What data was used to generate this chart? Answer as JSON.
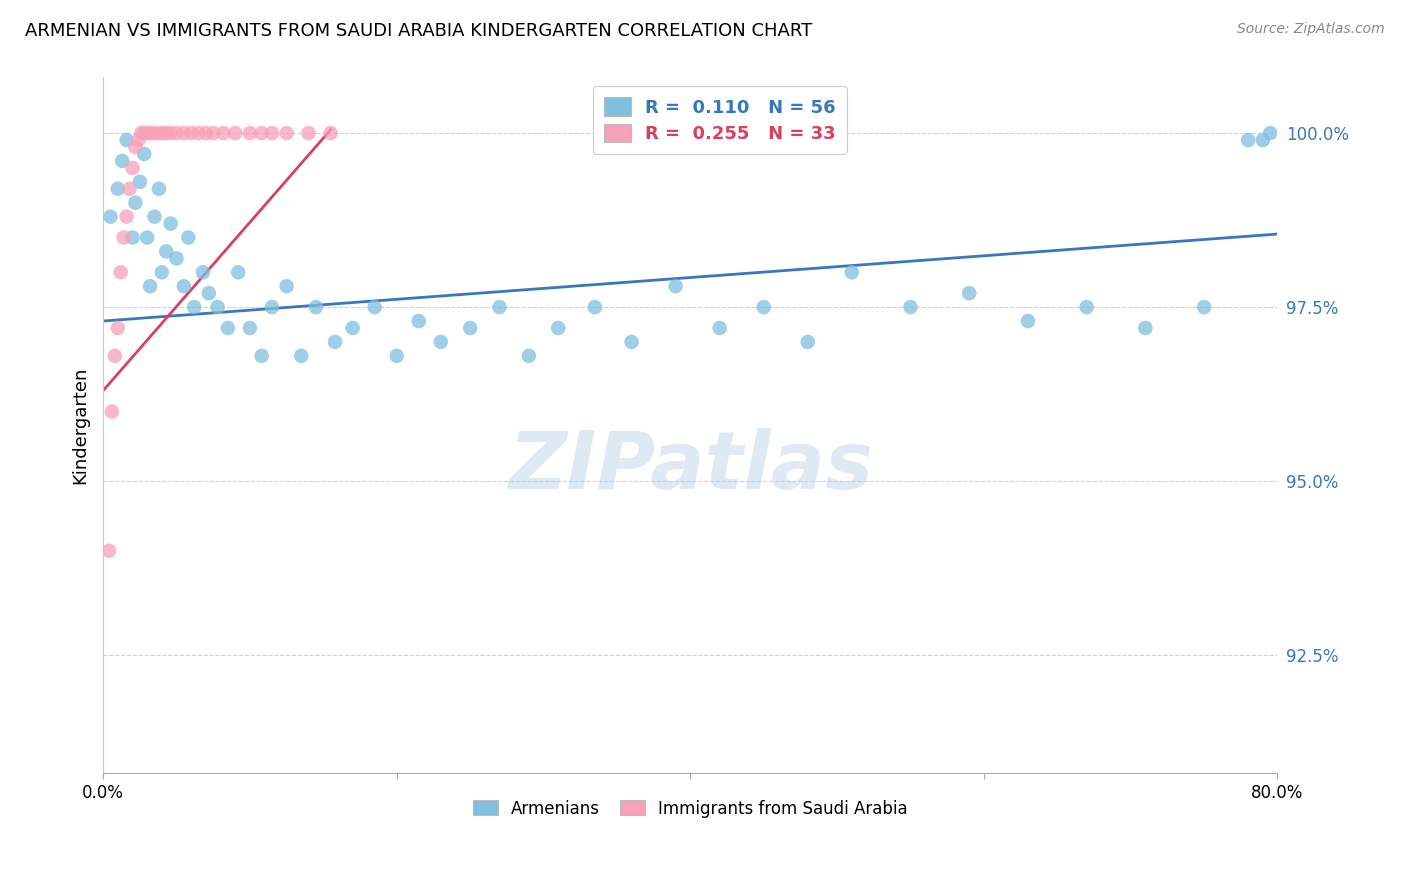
{
  "title": "ARMENIAN VS IMMIGRANTS FROM SAUDI ARABIA KINDERGARTEN CORRELATION CHART",
  "source": "Source: ZipAtlas.com",
  "ylabel": "Kindergarten",
  "ytick_labels": [
    "100.0%",
    "97.5%",
    "95.0%",
    "92.5%"
  ],
  "ytick_values": [
    1.0,
    0.975,
    0.95,
    0.925
  ],
  "xlim": [
    0.0,
    0.8
  ],
  "ylim": [
    0.908,
    1.008
  ],
  "watermark": "ZIPatlas",
  "legend_r_armenians": "R =  0.110",
  "legend_n_armenians": "N = 56",
  "legend_r_saudi": "R =  0.255",
  "legend_n_saudi": "N = 33",
  "armenians_color": "#7fbfdf",
  "saudi_color": "#f8a0b8",
  "trendline_armenians_color": "#3878b8",
  "trendline_saudi_color": "#d84060",
  "blue_scatter_x": [
    0.005,
    0.01,
    0.013,
    0.016,
    0.02,
    0.022,
    0.025,
    0.028,
    0.03,
    0.032,
    0.035,
    0.038,
    0.04,
    0.043,
    0.046,
    0.05,
    0.055,
    0.058,
    0.062,
    0.068,
    0.072,
    0.078,
    0.085,
    0.092,
    0.1,
    0.108,
    0.115,
    0.125,
    0.135,
    0.145,
    0.158,
    0.17,
    0.185,
    0.2,
    0.215,
    0.23,
    0.25,
    0.27,
    0.29,
    0.31,
    0.335,
    0.36,
    0.39,
    0.42,
    0.45,
    0.48,
    0.51,
    0.55,
    0.59,
    0.63,
    0.67,
    0.71,
    0.75,
    0.78,
    0.79,
    0.795
  ],
  "blue_scatter_y": [
    0.988,
    0.992,
    0.996,
    0.999,
    0.985,
    0.99,
    0.993,
    0.997,
    0.985,
    0.978,
    0.988,
    0.992,
    0.98,
    0.983,
    0.987,
    0.982,
    0.978,
    0.985,
    0.975,
    0.98,
    0.977,
    0.975,
    0.972,
    0.98,
    0.972,
    0.968,
    0.975,
    0.978,
    0.968,
    0.975,
    0.97,
    0.972,
    0.975,
    0.968,
    0.973,
    0.97,
    0.972,
    0.975,
    0.968,
    0.972,
    0.975,
    0.97,
    0.978,
    0.972,
    0.975,
    0.97,
    0.98,
    0.975,
    0.977,
    0.973,
    0.975,
    0.972,
    0.975,
    0.999,
    0.999,
    1.0
  ],
  "pink_scatter_x": [
    0.004,
    0.006,
    0.008,
    0.01,
    0.012,
    0.014,
    0.016,
    0.018,
    0.02,
    0.022,
    0.024,
    0.026,
    0.028,
    0.03,
    0.033,
    0.036,
    0.04,
    0.043,
    0.046,
    0.05,
    0.055,
    0.06,
    0.065,
    0.07,
    0.075,
    0.082,
    0.09,
    0.1,
    0.108,
    0.115,
    0.125,
    0.14,
    0.155
  ],
  "pink_scatter_y": [
    0.94,
    0.96,
    0.968,
    0.972,
    0.98,
    0.985,
    0.988,
    0.992,
    0.995,
    0.998,
    0.999,
    1.0,
    1.0,
    1.0,
    1.0,
    1.0,
    1.0,
    1.0,
    1.0,
    1.0,
    1.0,
    1.0,
    1.0,
    1.0,
    1.0,
    1.0,
    1.0,
    1.0,
    1.0,
    1.0,
    1.0,
    1.0,
    1.0
  ],
  "blue_trend_x": [
    0.0,
    0.8
  ],
  "blue_trend_y": [
    0.973,
    0.9855
  ],
  "pink_trend_x": [
    0.0,
    0.155
  ],
  "pink_trend_y": [
    0.963,
    1.0005
  ]
}
